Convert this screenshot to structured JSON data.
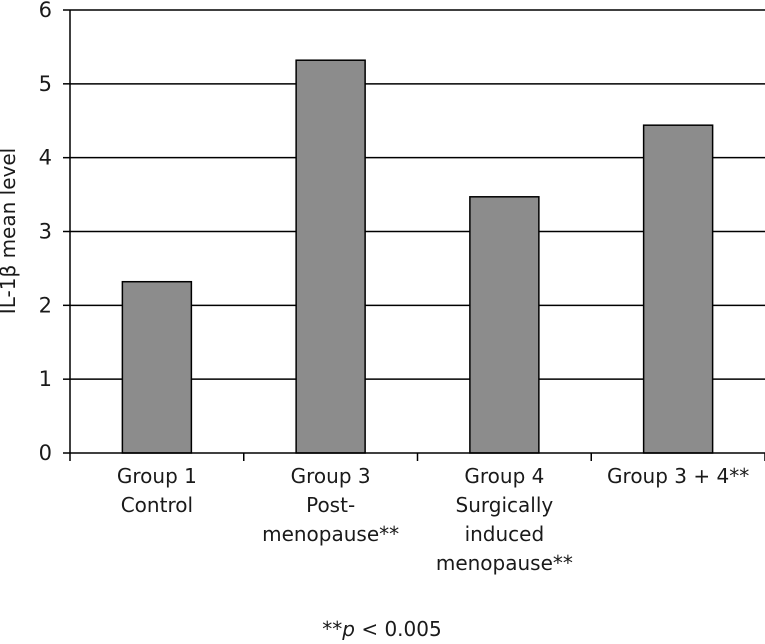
{
  "chart_data": {
    "type": "bar",
    "categories": [
      [
        "Group 1",
        "Control"
      ],
      [
        "Group 3",
        "Post-",
        "menopause**"
      ],
      [
        "Group 4",
        "Surgically",
        "induced",
        "menopause**"
      ],
      [
        "Group 3 + 4**"
      ]
    ],
    "values": [
      2.32,
      5.32,
      3.47,
      4.44
    ],
    "ylabel": "IL-1β mean level",
    "ylim": [
      0,
      6
    ],
    "yticks": [
      0,
      1,
      2,
      3,
      4,
      5,
      6
    ],
    "grid": true,
    "bar_color": "#8c8c8c",
    "footnote": {
      "prefix": "**",
      "italic": "p",
      "suffix": " < 0.005"
    }
  }
}
